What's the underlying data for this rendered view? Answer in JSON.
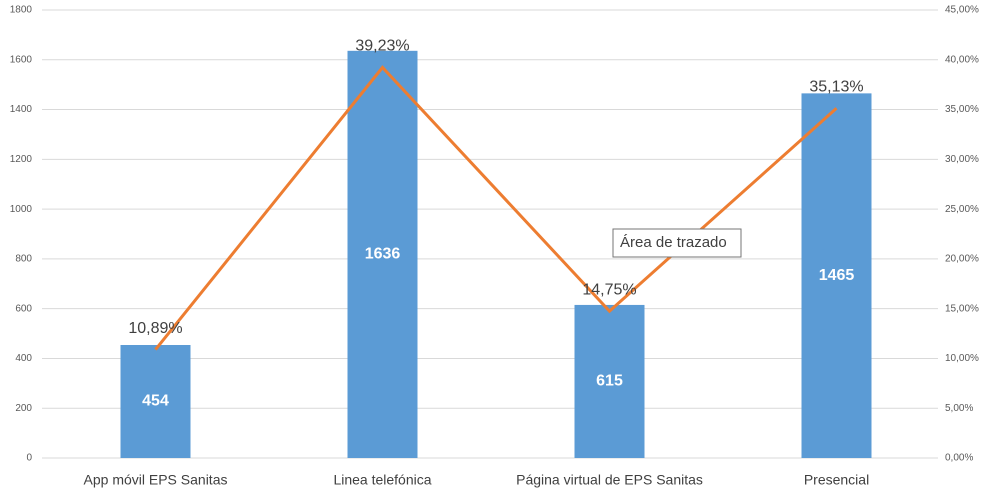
{
  "chart_data": {
    "type": "bar",
    "categories": [
      "App móvil EPS Sanitas",
      "Linea telefónica",
      "Página virtual de EPS Sanitas",
      "Presencial"
    ],
    "series": [
      {
        "type": "bar",
        "color": "#5b9bd5",
        "values": [
          454,
          1636,
          615,
          1465
        ]
      },
      {
        "type": "line",
        "axis": "y2",
        "color": "#ed7d31",
        "values": [
          10.89,
          39.23,
          14.75,
          35.13
        ],
        "value_labels": [
          "10,89%",
          "39,23%",
          "14,75%",
          "35,13%"
        ]
      }
    ],
    "ylim": [
      0,
      1800
    ],
    "yticks": [
      0,
      200,
      400,
      600,
      800,
      1000,
      1200,
      1400,
      1600,
      1800
    ],
    "y2lim": [
      0,
      45
    ],
    "y2ticks": [
      {
        "value": 0,
        "label": "0,00%"
      },
      {
        "value": 5,
        "label": "5,00%"
      },
      {
        "value": 10,
        "label": "10,00%"
      },
      {
        "value": 15,
        "label": "15,00%"
      },
      {
        "value": 20,
        "label": "20,00%"
      },
      {
        "value": 25,
        "label": "25,00%"
      },
      {
        "value": 30,
        "label": "30,00%"
      },
      {
        "value": 35,
        "label": "35,00%"
      },
      {
        "value": 40,
        "label": "40,00%"
      },
      {
        "value": 45,
        "label": "45,00%"
      }
    ],
    "grid": true,
    "annotation": "Área de trazado"
  }
}
